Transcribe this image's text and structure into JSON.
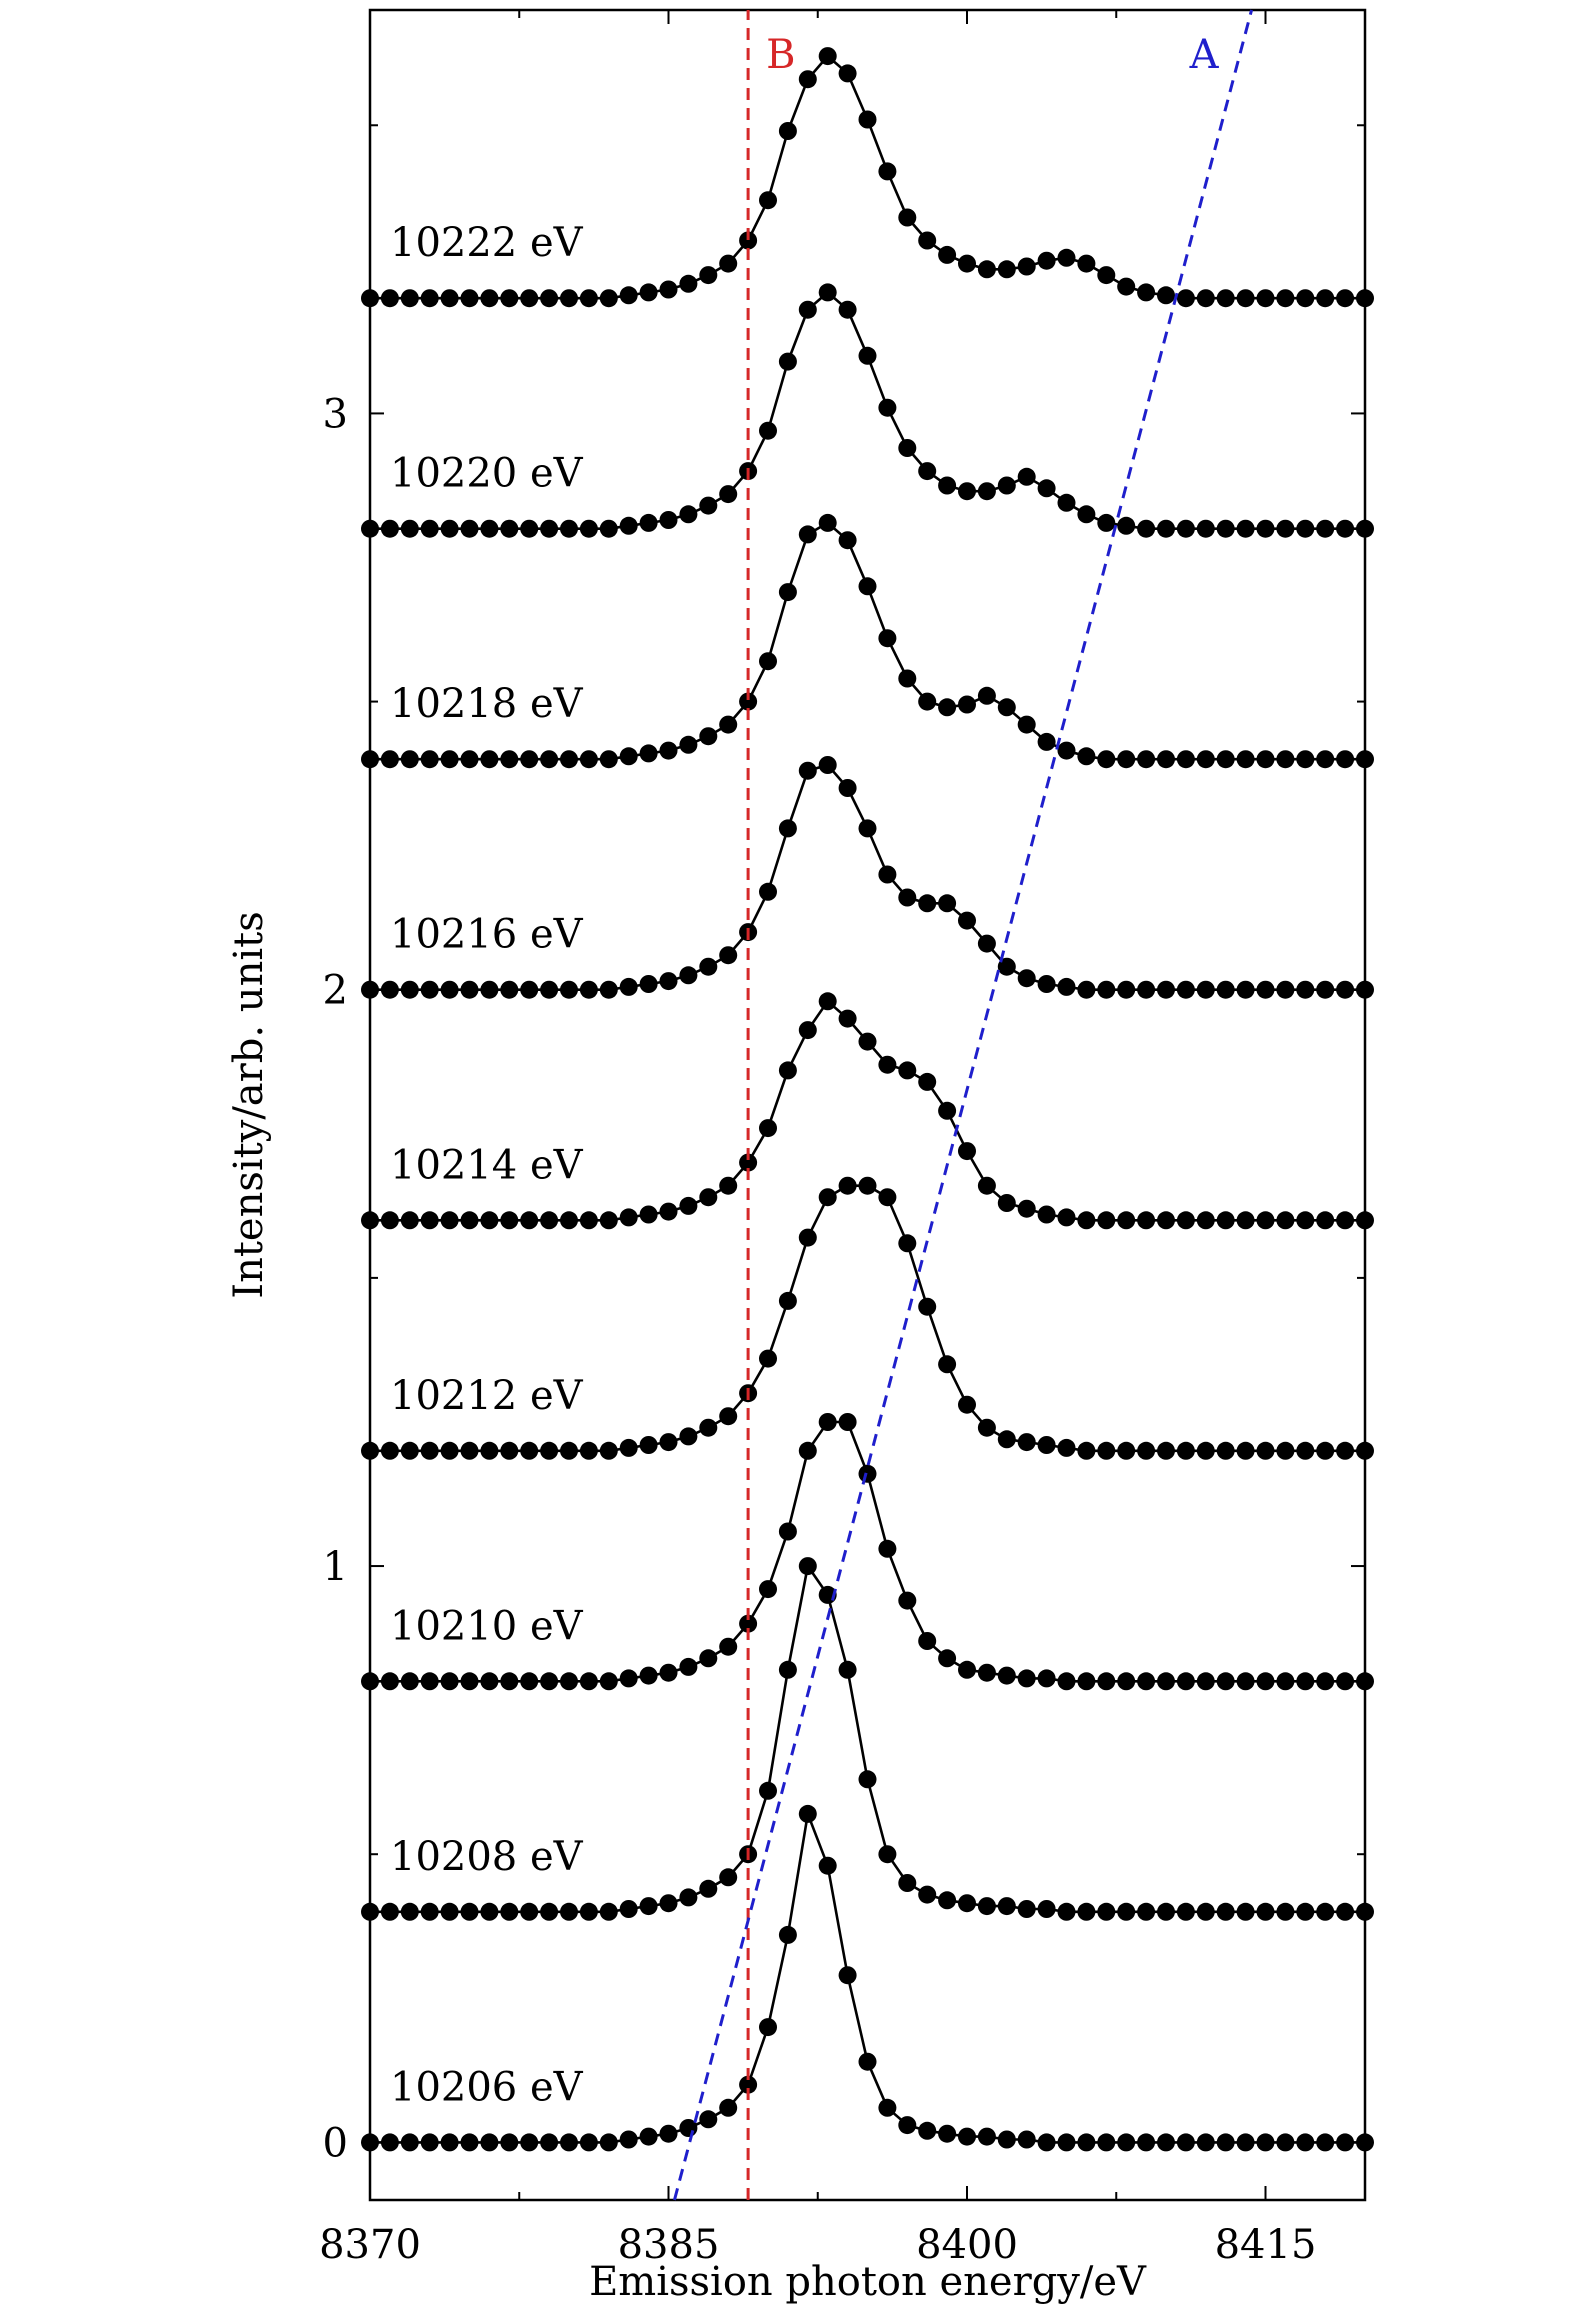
{
  "chart_data": {
    "type": "line",
    "xlabel": "Emission photon energy/eV",
    "ylabel": "Intensity/arb. units",
    "xlim": [
      8370,
      8420
    ],
    "ylim": [
      -0.1,
      3.7
    ],
    "xticks": [
      {
        "value": 8370,
        "label": "8370"
      },
      {
        "value": 8385,
        "label": "8385"
      },
      {
        "value": 8400,
        "label": "8400"
      },
      {
        "value": 8415,
        "label": "8415"
      }
    ],
    "yticks": [
      {
        "value": 0,
        "label": "0"
      },
      {
        "value": 1,
        "label": "1"
      },
      {
        "value": 2,
        "label": "2"
      },
      {
        "value": 3,
        "label": "3"
      }
    ],
    "x": [
      8370,
      8371,
      8372,
      8373,
      8374,
      8375,
      8376,
      8377,
      8378,
      8379,
      8380,
      8381,
      8382,
      8383,
      8384,
      8385,
      8386,
      8387,
      8388,
      8389,
      8390,
      8391,
      8392,
      8393,
      8394,
      8395,
      8396,
      8397,
      8398,
      8399,
      8400,
      8401,
      8402,
      8403,
      8404,
      8405,
      8406,
      8407,
      8408,
      8409,
      8410,
      8411,
      8412,
      8413,
      8414,
      8415,
      8416,
      8417,
      8418,
      8419,
      8420
    ],
    "series": [
      {
        "name": "10206 eV",
        "offset": 0.0,
        "values": [
          0,
          0,
          0,
          0,
          0,
          0,
          0,
          0,
          0,
          0,
          0,
          0,
          0,
          0.005,
          0.01,
          0.015,
          0.025,
          0.04,
          0.06,
          0.1,
          0.2,
          0.36,
          0.57,
          0.48,
          0.29,
          0.14,
          0.06,
          0.03,
          0.02,
          0.015,
          0.01,
          0.01,
          0.005,
          0.005,
          0,
          0,
          0,
          0,
          0,
          0,
          0,
          0,
          0,
          0,
          0,
          0,
          0,
          0,
          0,
          0,
          0
        ]
      },
      {
        "name": "10208 eV",
        "offset": 0.4,
        "values": [
          0,
          0,
          0,
          0,
          0,
          0,
          0,
          0,
          0,
          0,
          0,
          0,
          0,
          0.005,
          0.01,
          0.015,
          0.025,
          0.04,
          0.06,
          0.1,
          0.21,
          0.42,
          0.6,
          0.55,
          0.42,
          0.23,
          0.1,
          0.05,
          0.03,
          0.02,
          0.015,
          0.01,
          0.01,
          0.005,
          0.005,
          0,
          0,
          0,
          0,
          0,
          0,
          0,
          0,
          0,
          0,
          0,
          0,
          0,
          0,
          0,
          0
        ]
      },
      {
        "name": "10210 eV",
        "offset": 0.8,
        "values": [
          0,
          0,
          0,
          0,
          0,
          0,
          0,
          0,
          0,
          0,
          0,
          0,
          0,
          0.005,
          0.01,
          0.015,
          0.025,
          0.04,
          0.06,
          0.1,
          0.16,
          0.26,
          0.4,
          0.45,
          0.45,
          0.36,
          0.23,
          0.14,
          0.07,
          0.04,
          0.02,
          0.015,
          0.01,
          0.005,
          0.005,
          0,
          0,
          0,
          0,
          0,
          0,
          0,
          0,
          0,
          0,
          0,
          0,
          0,
          0,
          0,
          0
        ]
      },
      {
        "name": "10212 eV",
        "offset": 1.2,
        "values": [
          0,
          0,
          0,
          0,
          0,
          0,
          0,
          0,
          0,
          0,
          0,
          0,
          0,
          0.005,
          0.01,
          0.015,
          0.025,
          0.04,
          0.06,
          0.1,
          0.16,
          0.26,
          0.37,
          0.44,
          0.46,
          0.46,
          0.44,
          0.36,
          0.25,
          0.15,
          0.08,
          0.04,
          0.02,
          0.015,
          0.01,
          0.005,
          0,
          0,
          0,
          0,
          0,
          0,
          0,
          0,
          0,
          0,
          0,
          0,
          0,
          0,
          0
        ]
      },
      {
        "name": "10214 eV",
        "offset": 1.6,
        "values": [
          0,
          0,
          0,
          0,
          0,
          0,
          0,
          0,
          0,
          0,
          0,
          0,
          0,
          0.005,
          0.01,
          0.015,
          0.025,
          0.04,
          0.06,
          0.1,
          0.16,
          0.26,
          0.33,
          0.38,
          0.35,
          0.31,
          0.27,
          0.26,
          0.24,
          0.19,
          0.12,
          0.06,
          0.03,
          0.02,
          0.01,
          0.005,
          0,
          0,
          0,
          0,
          0,
          0,
          0,
          0,
          0,
          0,
          0,
          0,
          0,
          0,
          0
        ]
      },
      {
        "name": "10216 eV",
        "offset": 2.0,
        "values": [
          0,
          0,
          0,
          0,
          0,
          0,
          0,
          0,
          0,
          0,
          0,
          0,
          0,
          0.005,
          0.01,
          0.015,
          0.025,
          0.04,
          0.06,
          0.1,
          0.17,
          0.28,
          0.38,
          0.39,
          0.35,
          0.28,
          0.2,
          0.16,
          0.15,
          0.15,
          0.12,
          0.08,
          0.04,
          0.02,
          0.01,
          0.005,
          0,
          0,
          0,
          0,
          0,
          0,
          0,
          0,
          0,
          0,
          0,
          0,
          0,
          0,
          0
        ]
      },
      {
        "name": "10218 eV",
        "offset": 2.4,
        "values": [
          0,
          0,
          0,
          0,
          0,
          0,
          0,
          0,
          0,
          0,
          0,
          0,
          0,
          0.005,
          0.01,
          0.015,
          0.025,
          0.04,
          0.06,
          0.1,
          0.17,
          0.29,
          0.39,
          0.41,
          0.38,
          0.3,
          0.21,
          0.14,
          0.1,
          0.09,
          0.095,
          0.11,
          0.09,
          0.06,
          0.03,
          0.015,
          0.005,
          0,
          0,
          0,
          0,
          0,
          0,
          0,
          0,
          0,
          0,
          0,
          0,
          0,
          0
        ]
      },
      {
        "name": "10220 eV",
        "offset": 2.8,
        "values": [
          0,
          0,
          0,
          0,
          0,
          0,
          0,
          0,
          0,
          0,
          0,
          0,
          0,
          0.005,
          0.01,
          0.015,
          0.025,
          0.04,
          0.06,
          0.1,
          0.17,
          0.29,
          0.38,
          0.41,
          0.38,
          0.3,
          0.21,
          0.14,
          0.1,
          0.075,
          0.065,
          0.065,
          0.075,
          0.09,
          0.07,
          0.045,
          0.025,
          0.01,
          0.005,
          0,
          0,
          0,
          0,
          0,
          0,
          0,
          0,
          0,
          0,
          0,
          0
        ]
      },
      {
        "name": "10222 eV",
        "offset": 3.2,
        "values": [
          0,
          0,
          0,
          0,
          0,
          0,
          0,
          0,
          0,
          0,
          0,
          0,
          0,
          0.005,
          0.01,
          0.015,
          0.025,
          0.04,
          0.06,
          0.1,
          0.17,
          0.29,
          0.38,
          0.42,
          0.39,
          0.31,
          0.22,
          0.14,
          0.1,
          0.075,
          0.06,
          0.05,
          0.05,
          0.055,
          0.065,
          0.07,
          0.06,
          0.04,
          0.02,
          0.01,
          0.005,
          0,
          0,
          0,
          0,
          0,
          0,
          0,
          0,
          0,
          0
        ]
      }
    ],
    "guides": [
      {
        "label": "B",
        "color": "#d62728",
        "x_start": 8389,
        "x_end": 8389,
        "y_start": -0.1,
        "y_end": 3.7
      },
      {
        "label": "A",
        "color": "#1f1fcc",
        "x_start": 8385.3,
        "x_end": 8414.3,
        "y_start": -0.1,
        "y_end": 3.7
      }
    ],
    "grid": false,
    "legend": "none"
  }
}
